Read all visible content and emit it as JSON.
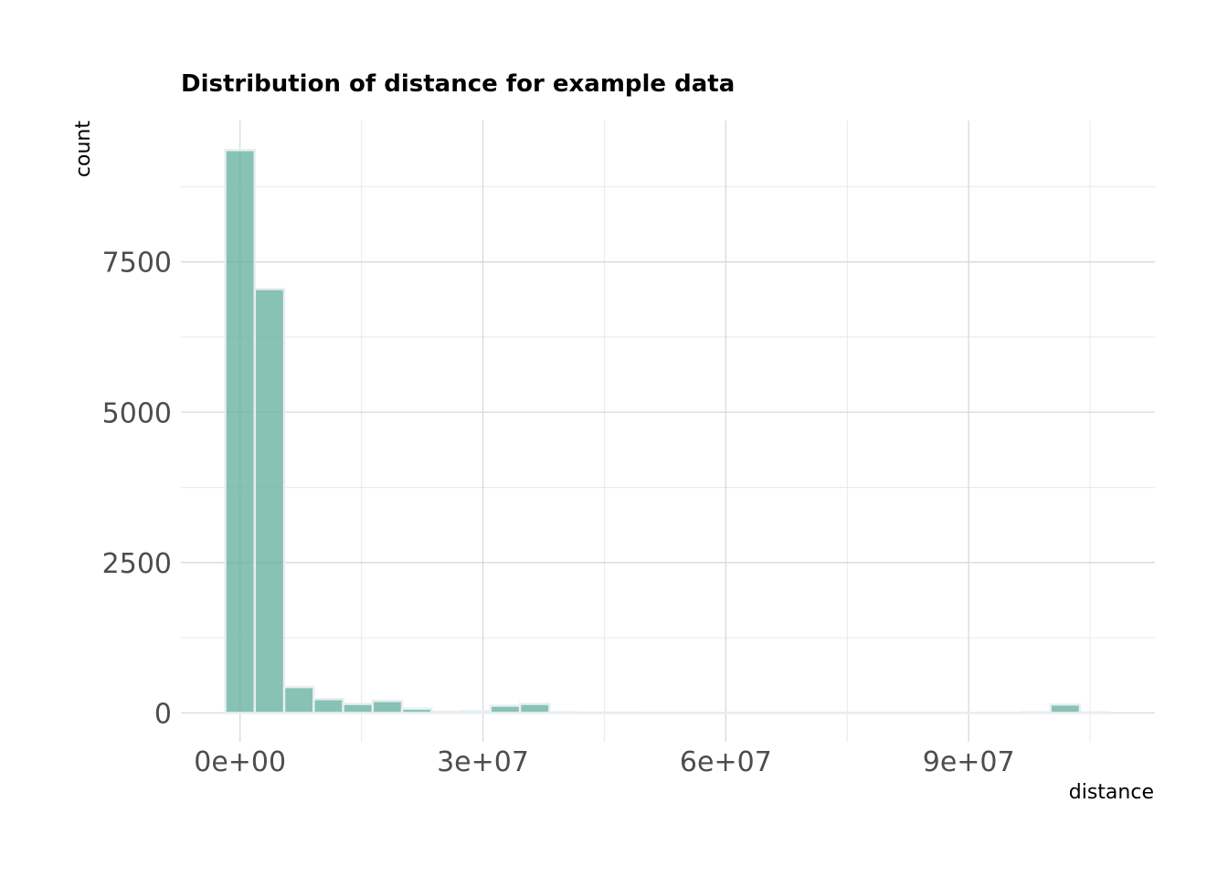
{
  "chart_data": {
    "type": "bar",
    "title": "Distribution of distance for example data",
    "xlabel": "distance",
    "ylabel": "count",
    "x_ticks": [
      {
        "value": 0,
        "label": "0e+00"
      },
      {
        "value": 30000000,
        "label": "3e+07"
      },
      {
        "value": 60000000,
        "label": "6e+07"
      },
      {
        "value": 90000000,
        "label": "9e+07"
      }
    ],
    "y_ticks": [
      {
        "value": 0,
        "label": "0"
      },
      {
        "value": 2500,
        "label": "2500"
      },
      {
        "value": 5000,
        "label": "5000"
      },
      {
        "value": 7500,
        "label": "7500"
      }
    ],
    "xlim": [
      -7300000,
      113000000
    ],
    "ylim": [
      -480,
      9850
    ],
    "bin_width": 3640000,
    "bins": [
      {
        "center": 0,
        "count": 9360
      },
      {
        "center": 3640000,
        "count": 7050
      },
      {
        "center": 7280000,
        "count": 430
      },
      {
        "center": 10920000,
        "count": 230
      },
      {
        "center": 14560000,
        "count": 150
      },
      {
        "center": 18200000,
        "count": 200
      },
      {
        "center": 21840000,
        "count": 70
      },
      {
        "center": 25480000,
        "count": 20
      },
      {
        "center": 29120000,
        "count": 30
      },
      {
        "center": 32760000,
        "count": 120
      },
      {
        "center": 36400000,
        "count": 150
      },
      {
        "center": 40040000,
        "count": 10
      },
      {
        "center": 43680000,
        "count": 5
      },
      {
        "center": 47320000,
        "count": 5
      },
      {
        "center": 50960000,
        "count": 3
      },
      {
        "center": 54600000,
        "count": 3
      },
      {
        "center": 58240000,
        "count": 2
      },
      {
        "center": 61880000,
        "count": 2
      },
      {
        "center": 65520000,
        "count": 2
      },
      {
        "center": 69160000,
        "count": 2
      },
      {
        "center": 72800000,
        "count": 2
      },
      {
        "center": 76440000,
        "count": 2
      },
      {
        "center": 80080000,
        "count": 2
      },
      {
        "center": 83720000,
        "count": 2
      },
      {
        "center": 87360000,
        "count": 2
      },
      {
        "center": 91000000,
        "count": 2
      },
      {
        "center": 94640000,
        "count": 3
      },
      {
        "center": 98280000,
        "count": 10
      },
      {
        "center": 101920000,
        "count": 140
      },
      {
        "center": 105560000,
        "count": 10
      }
    ],
    "colors": {
      "fill": "#69b3a2",
      "outline": "#e8eef2"
    },
    "grid": true,
    "legend": "none"
  }
}
